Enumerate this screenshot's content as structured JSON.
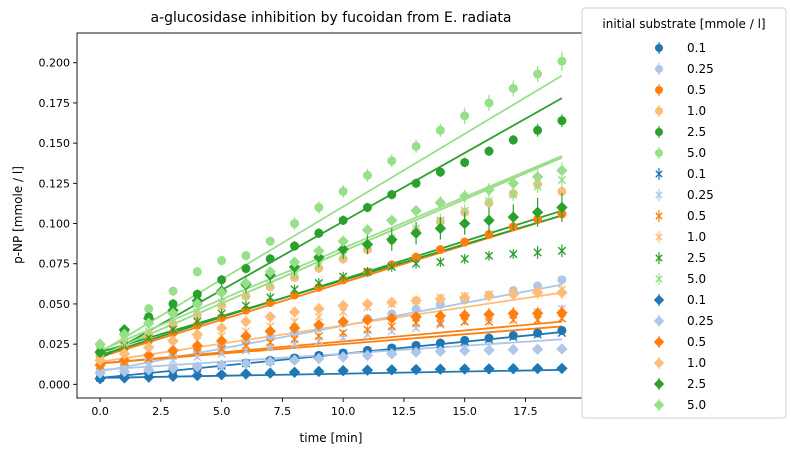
{
  "chart_data": {
    "type": "scatter",
    "title": "a-glucosidase inhibition by fucoidan from E. radiata",
    "xlabel": "time [min]",
    "ylabel": "p-NP [mmole / l]",
    "xlim": [
      -0.95,
      19.95
    ],
    "ylim": [
      -0.0085,
      0.2185
    ],
    "x_ticks": [
      0.0,
      2.5,
      5.0,
      7.5,
      10.0,
      12.5,
      15.0,
      17.5
    ],
    "x_tick_labels": [
      "0.0",
      "2.5",
      "5.0",
      "7.5",
      "10.0",
      "12.5",
      "15.0",
      "17.5"
    ],
    "y_ticks": [
      0.0,
      0.025,
      0.05,
      0.075,
      0.1,
      0.125,
      0.15,
      0.175,
      0.2
    ],
    "y_tick_labels": [
      "0.000",
      "0.025",
      "0.050",
      "0.075",
      "0.100",
      "0.125",
      "0.150",
      "0.175",
      "0.200"
    ],
    "grid": false,
    "legend": {
      "title": "initial substrate [mmole / l]",
      "placement": "outside-right",
      "entries": [
        {
          "label": "0.1",
          "marker": "circle",
          "color": "#1f77b4"
        },
        {
          "label": "0.25",
          "marker": "circle",
          "color": "#aec7e8"
        },
        {
          "label": "0.5",
          "marker": "circle",
          "color": "#ff7f0e"
        },
        {
          "label": "1.0",
          "marker": "circle",
          "color": "#ffbb78"
        },
        {
          "label": "2.5",
          "marker": "circle",
          "color": "#2ca02c"
        },
        {
          "label": "5.0",
          "marker": "circle",
          "color": "#98df8a"
        },
        {
          "label": "0.1",
          "marker": "x",
          "color": "#1f77b4"
        },
        {
          "label": "0.25",
          "marker": "x",
          "color": "#aec7e8"
        },
        {
          "label": "0.5",
          "marker": "x",
          "color": "#ff7f0e"
        },
        {
          "label": "1.0",
          "marker": "x",
          "color": "#ffbb78"
        },
        {
          "label": "2.5",
          "marker": "x",
          "color": "#2ca02c"
        },
        {
          "label": "5.0",
          "marker": "x",
          "color": "#98df8a"
        },
        {
          "label": "0.1",
          "marker": "diamond",
          "color": "#1f77b4"
        },
        {
          "label": "0.25",
          "marker": "diamond",
          "color": "#aec7e8"
        },
        {
          "label": "0.5",
          "marker": "diamond",
          "color": "#ff7f0e"
        },
        {
          "label": "1.0",
          "marker": "diamond",
          "color": "#ffbb78"
        },
        {
          "label": "2.5",
          "marker": "diamond",
          "color": "#2ca02c"
        },
        {
          "label": "5.0",
          "marker": "diamond",
          "color": "#98df8a"
        }
      ]
    },
    "x": [
      0,
      1,
      2,
      3,
      4,
      5,
      6,
      7,
      8,
      9,
      10,
      11,
      12,
      13,
      14,
      15,
      16,
      17,
      18,
      19
    ],
    "series": [
      {
        "marker": "circle",
        "color": "#1f77b4",
        "values": [
          0.004,
          0.0056,
          0.0071,
          0.0087,
          0.0102,
          0.0118,
          0.0133,
          0.0149,
          0.0164,
          0.018,
          0.0195,
          0.0211,
          0.0226,
          0.0242,
          0.0257,
          0.0273,
          0.0288,
          0.0304,
          0.0319,
          0.0335
        ],
        "yerr": [
          0.0012,
          0.0012,
          0.0012,
          0.0012,
          0.0012,
          0.0012,
          0.0012,
          0.0012,
          0.0012,
          0.0012,
          0.0012,
          0.0012,
          0.0012,
          0.0012,
          0.0012,
          0.0012,
          0.0012,
          0.0012,
          0.0012,
          0.0012
        ],
        "fit": [
          0.004,
          0.0325
        ]
      },
      {
        "marker": "circle",
        "color": "#aec7e8",
        "values": [
          0.009,
          0.0119,
          0.0148,
          0.0177,
          0.0206,
          0.0235,
          0.0264,
          0.0293,
          0.0322,
          0.0351,
          0.038,
          0.0409,
          0.0438,
          0.0467,
          0.0496,
          0.0525,
          0.0554,
          0.0583,
          0.0612,
          0.065
        ],
        "yerr": [
          0.0015,
          0.0015,
          0.0015,
          0.0015,
          0.0015,
          0.0015,
          0.0015,
          0.0015,
          0.0015,
          0.0015,
          0.0015,
          0.0015,
          0.0015,
          0.0015,
          0.0015,
          0.0015,
          0.0015,
          0.0015,
          0.0015,
          0.0015
        ],
        "fit": [
          0.008,
          0.062
        ]
      },
      {
        "marker": "circle",
        "color": "#ff7f0e",
        "values": [
          0.018,
          0.0227,
          0.0274,
          0.0321,
          0.0368,
          0.0415,
          0.0462,
          0.0509,
          0.0556,
          0.0603,
          0.065,
          0.0697,
          0.0744,
          0.0791,
          0.0838,
          0.0885,
          0.0932,
          0.0979,
          0.1026,
          0.106
        ],
        "yerr": [
          0.002,
          0.002,
          0.002,
          0.002,
          0.002,
          0.002,
          0.002,
          0.002,
          0.002,
          0.002,
          0.002,
          0.002,
          0.002,
          0.002,
          0.002,
          0.002,
          0.002,
          0.002,
          0.002,
          0.002
        ],
        "fit": [
          0.017,
          0.105
        ]
      },
      {
        "marker": "circle",
        "color": "#ffbb78",
        "values": [
          0.02,
          0.0258,
          0.0316,
          0.0374,
          0.0432,
          0.049,
          0.0548,
          0.0606,
          0.0664,
          0.0722,
          0.078,
          0.0838,
          0.0896,
          0.0954,
          0.1012,
          0.107,
          0.1128,
          0.1186,
          0.1244,
          0.12
        ],
        "yerr": [
          0.003,
          0.003,
          0.003,
          0.003,
          0.003,
          0.003,
          0.003,
          0.003,
          0.003,
          0.003,
          0.003,
          0.003,
          0.003,
          0.003,
          0.003,
          0.003,
          0.003,
          0.003,
          0.003,
          0.003
        ],
        "fit": [
          0.018,
          0.141
        ]
      },
      {
        "marker": "circle",
        "color": "#2ca02c",
        "values": [
          0.02,
          0.033,
          0.042,
          0.05,
          0.056,
          0.065,
          0.072,
          0.078,
          0.086,
          0.094,
          0.102,
          0.11,
          0.118,
          0.125,
          0.132,
          0.138,
          0.145,
          0.152,
          0.158,
          0.164
        ],
        "yerr": [
          0.003,
          0.003,
          0.003,
          0.003,
          0.003,
          0.003,
          0.003,
          0.003,
          0.003,
          0.003,
          0.003,
          0.003,
          0.003,
          0.003,
          0.003,
          0.003,
          0.003,
          0.003,
          0.004,
          0.004
        ],
        "fit": [
          0.016,
          0.178
        ]
      },
      {
        "marker": "circle",
        "color": "#98df8a",
        "values": [
          0.024,
          0.031,
          0.047,
          0.058,
          0.07,
          0.077,
          0.08,
          0.089,
          0.1,
          0.11,
          0.12,
          0.13,
          0.139,
          0.148,
          0.158,
          0.167,
          0.175,
          0.184,
          0.193,
          0.201
        ],
        "yerr": [
          0.003,
          0.003,
          0.003,
          0.003,
          0.003,
          0.003,
          0.003,
          0.003,
          0.004,
          0.004,
          0.004,
          0.004,
          0.004,
          0.004,
          0.004,
          0.005,
          0.005,
          0.005,
          0.005,
          0.006
        ],
        "fit": [
          0.02,
          0.192
        ]
      },
      {
        "marker": "x",
        "color": "#1f77b4",
        "values": [
          0.004,
          0.0055,
          0.007,
          0.0085,
          0.01,
          0.0115,
          0.013,
          0.0145,
          0.016,
          0.0175,
          0.019,
          0.0205,
          0.022,
          0.0235,
          0.025,
          0.0265,
          0.028,
          0.0295,
          0.031,
          0.032
        ],
        "yerr": [
          0.0012,
          0.0012,
          0.0012,
          0.0012,
          0.0012,
          0.0012,
          0.0012,
          0.0012,
          0.0012,
          0.0012,
          0.0012,
          0.0012,
          0.0012,
          0.0012,
          0.0012,
          0.0012,
          0.0012,
          0.0012,
          0.0012,
          0.0012
        ],
        "fit": null
      },
      {
        "marker": "x",
        "color": "#aec7e8",
        "values": [
          0.009,
          0.011,
          0.013,
          0.015,
          0.017,
          0.019,
          0.021,
          0.023,
          0.025,
          0.027,
          0.029,
          0.031,
          0.033,
          0.035,
          0.037,
          0.039,
          0.041,
          0.043,
          0.045,
          0.047
        ],
        "yerr": [
          0.0015,
          0.0015,
          0.0015,
          0.0015,
          0.0015,
          0.0015,
          0.0015,
          0.0015,
          0.0015,
          0.0015,
          0.0015,
          0.0015,
          0.0015,
          0.0015,
          0.0015,
          0.0015,
          0.0015,
          0.0015,
          0.0015,
          0.0015
        ],
        "fit": null
      },
      {
        "marker": "x",
        "color": "#ff7f0e",
        "values": [
          0.012,
          0.014,
          0.016,
          0.018,
          0.02,
          0.022,
          0.024,
          0.026,
          0.028,
          0.03,
          0.032,
          0.034,
          0.036,
          0.038,
          0.038,
          0.039,
          0.039,
          0.04,
          0.04,
          0.041
        ],
        "yerr": [
          0.002,
          0.002,
          0.002,
          0.002,
          0.002,
          0.002,
          0.002,
          0.002,
          0.002,
          0.002,
          0.002,
          0.002,
          0.002,
          0.002,
          0.002,
          0.002,
          0.002,
          0.002,
          0.002,
          0.002
        ],
        "fit": [
          0.013,
          0.036
        ]
      },
      {
        "marker": "x",
        "color": "#ffbb78",
        "values": [
          0.015,
          0.018,
          0.021,
          0.024,
          0.027,
          0.03,
          0.033,
          0.036,
          0.039,
          0.042,
          0.045,
          0.048,
          0.05,
          0.052,
          0.054,
          0.055,
          0.056,
          0.057,
          0.058,
          0.059
        ],
        "yerr": [
          0.0025,
          0.0025,
          0.0025,
          0.0025,
          0.0025,
          0.0025,
          0.0025,
          0.0025,
          0.0025,
          0.0025,
          0.0025,
          0.0025,
          0.0025,
          0.0025,
          0.0025,
          0.0025,
          0.0025,
          0.0025,
          0.0025,
          0.0025
        ],
        "fit": [
          0.014,
          0.057
        ]
      },
      {
        "marker": "x",
        "color": "#2ca02c",
        "values": [
          0.018,
          0.024,
          0.029,
          0.034,
          0.039,
          0.044,
          0.049,
          0.054,
          0.059,
          0.063,
          0.067,
          0.07,
          0.073,
          0.075,
          0.076,
          0.078,
          0.08,
          0.081,
          0.082,
          0.083
        ],
        "yerr": [
          0.003,
          0.003,
          0.003,
          0.003,
          0.003,
          0.003,
          0.003,
          0.003,
          0.003,
          0.003,
          0.003,
          0.003,
          0.003,
          0.003,
          0.003,
          0.003,
          0.003,
          0.003,
          0.004,
          0.004
        ],
        "fit": [
          0.02,
          0.105
        ]
      },
      {
        "marker": "x",
        "color": "#98df8a",
        "values": [
          0.02,
          0.026,
          0.033,
          0.039,
          0.045,
          0.051,
          0.056,
          0.062,
          0.068,
          0.074,
          0.08,
          0.086,
          0.091,
          0.097,
          0.102,
          0.108,
          0.114,
          0.118,
          0.123,
          0.127
        ],
        "yerr": [
          0.003,
          0.003,
          0.003,
          0.003,
          0.003,
          0.003,
          0.003,
          0.003,
          0.003,
          0.003,
          0.003,
          0.003,
          0.003,
          0.003,
          0.004,
          0.004,
          0.004,
          0.004,
          0.004,
          0.005
        ],
        "fit": [
          0.018,
          0.141
        ]
      },
      {
        "marker": "diamond",
        "color": "#1f77b4",
        "values": [
          0.0035,
          0.004,
          0.0045,
          0.005,
          0.0055,
          0.006,
          0.0065,
          0.007,
          0.0075,
          0.008,
          0.0085,
          0.0088,
          0.009,
          0.0092,
          0.0094,
          0.0095,
          0.0096,
          0.0097,
          0.0098,
          0.0099
        ],
        "yerr": [
          0.001,
          0.001,
          0.001,
          0.001,
          0.001,
          0.001,
          0.001,
          0.001,
          0.001,
          0.001,
          0.001,
          0.001,
          0.001,
          0.001,
          0.001,
          0.001,
          0.001,
          0.001,
          0.001,
          0.001
        ],
        "fit": [
          0.004,
          0.009
        ]
      },
      {
        "marker": "diamond",
        "color": "#aec7e8",
        "values": [
          0.007,
          0.008,
          0.009,
          0.01,
          0.011,
          0.012,
          0.013,
          0.014,
          0.015,
          0.016,
          0.017,
          0.018,
          0.019,
          0.02,
          0.0205,
          0.021,
          0.0213,
          0.0216,
          0.0218,
          0.022
        ],
        "yerr": [
          0.0012,
          0.0012,
          0.0012,
          0.0012,
          0.0012,
          0.0012,
          0.0012,
          0.0012,
          0.0012,
          0.0012,
          0.0012,
          0.0012,
          0.0012,
          0.0012,
          0.0012,
          0.0012,
          0.0012,
          0.0012,
          0.0012,
          0.0012
        ],
        "fit": [
          0.009,
          0.028
        ]
      },
      {
        "marker": "diamond",
        "color": "#ff7f0e",
        "values": [
          0.012,
          0.015,
          0.018,
          0.021,
          0.024,
          0.027,
          0.03,
          0.033,
          0.035,
          0.037,
          0.039,
          0.04,
          0.041,
          0.042,
          0.0425,
          0.043,
          0.0435,
          0.044,
          0.0442,
          0.0445
        ],
        "yerr": [
          0.003,
          0.003,
          0.003,
          0.003,
          0.003,
          0.003,
          0.003,
          0.003,
          0.003,
          0.003,
          0.003,
          0.003,
          0.003,
          0.003,
          0.003,
          0.004,
          0.004,
          0.004,
          0.004,
          0.005
        ],
        "fit": [
          0.013,
          0.039
        ]
      },
      {
        "marker": "diamond",
        "color": "#ffbb78",
        "values": [
          0.015,
          0.019,
          0.023,
          0.027,
          0.031,
          0.035,
          0.039,
          0.042,
          0.045,
          0.047,
          0.049,
          0.05,
          0.051,
          0.052,
          0.053,
          0.054,
          0.055,
          0.056,
          0.057,
          0.057
        ],
        "yerr": [
          0.003,
          0.003,
          0.003,
          0.003,
          0.003,
          0.003,
          0.003,
          0.003,
          0.003,
          0.003,
          0.003,
          0.003,
          0.003,
          0.003,
          0.003,
          0.003,
          0.003,
          0.003,
          0.004,
          0.004
        ],
        "fit": null
      },
      {
        "marker": "diamond",
        "color": "#2ca02c",
        "values": [
          0.02,
          0.034,
          0.041,
          0.046,
          0.052,
          0.058,
          0.062,
          0.068,
          0.073,
          0.079,
          0.084,
          0.087,
          0.09,
          0.094,
          0.097,
          0.1,
          0.102,
          0.104,
          0.107,
          0.11
        ],
        "yerr": [
          0.003,
          0.003,
          0.004,
          0.004,
          0.004,
          0.005,
          0.005,
          0.005,
          0.005,
          0.006,
          0.006,
          0.006,
          0.007,
          0.007,
          0.007,
          0.007,
          0.008,
          0.008,
          0.009,
          0.009
        ],
        "fit": [
          0.018,
          0.108
        ]
      },
      {
        "marker": "diamond",
        "color": "#98df8a",
        "values": [
          0.025,
          0.031,
          0.038,
          0.044,
          0.05,
          0.057,
          0.063,
          0.07,
          0.076,
          0.083,
          0.089,
          0.096,
          0.102,
          0.108,
          0.113,
          0.117,
          0.121,
          0.125,
          0.129,
          0.133
        ],
        "yerr": [
          0.003,
          0.003,
          0.003,
          0.003,
          0.003,
          0.003,
          0.003,
          0.003,
          0.003,
          0.003,
          0.003,
          0.003,
          0.003,
          0.003,
          0.004,
          0.004,
          0.004,
          0.004,
          0.005,
          0.005
        ],
        "fit": [
          0.021,
          0.142
        ]
      }
    ]
  }
}
